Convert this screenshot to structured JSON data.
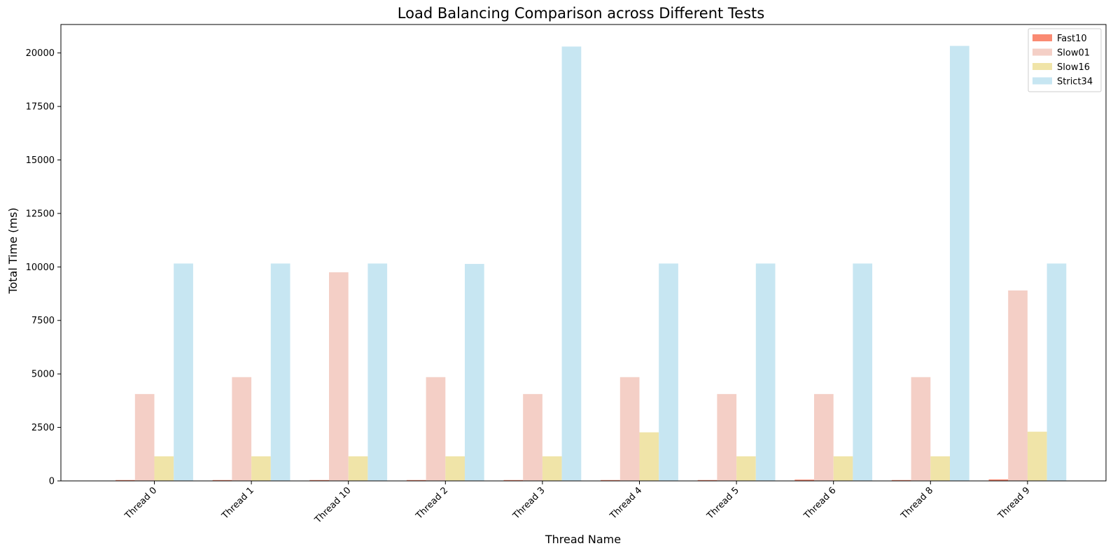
{
  "chart_data": {
    "type": "bar",
    "title": "Load Balancing Comparison across Different Tests",
    "xlabel": "Thread Name",
    "ylabel": "Total Time (ms)",
    "categories": [
      "Thread 0",
      "Thread 1",
      "Thread 10",
      "Thread 2",
      "Thread 3",
      "Thread 4",
      "Thread 5",
      "Thread 6",
      "Thread 8",
      "Thread 9"
    ],
    "series": [
      {
        "name": "Fast10",
        "color": "#fa8a72",
        "values": [
          40,
          40,
          40,
          40,
          40,
          40,
          40,
          60,
          40,
          70
        ]
      },
      {
        "name": "Slow01",
        "color": "#f4cfc6",
        "values": [
          4060,
          4850,
          9750,
          4850,
          4060,
          4850,
          4060,
          4060,
          4850,
          8900
        ]
      },
      {
        "name": "Slow16",
        "color": "#f0e4a8",
        "values": [
          1150,
          1150,
          1150,
          1150,
          1150,
          2270,
          1150,
          1150,
          1150,
          2300
        ]
      },
      {
        "name": "Strict34",
        "color": "#c7e6f2",
        "values": [
          10160,
          10160,
          10160,
          10140,
          20300,
          10160,
          10160,
          10160,
          20330,
          10160
        ]
      }
    ],
    "ylim": [
      0,
      21330
    ],
    "yticks": [
      0,
      2500,
      5000,
      7500,
      10000,
      12500,
      15000,
      17500,
      20000
    ],
    "legend_position": "top-right",
    "grid": false
  }
}
